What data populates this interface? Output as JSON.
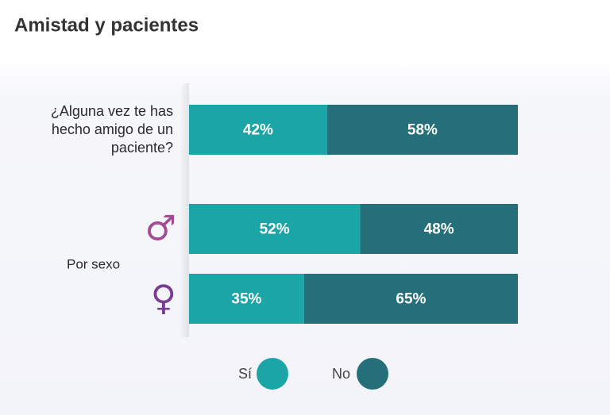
{
  "chart_data": {
    "type": "stacked-bar-horizontal",
    "title": "Amistad y pacientes",
    "categories": [
      "¿Alguna vez te has hecho amigo de un paciente?",
      "♂",
      "♀"
    ],
    "category_colors": [
      null,
      "#a24d93",
      "#7a3d92"
    ],
    "group_label": "Por sexo",
    "series": [
      {
        "name": "Sí",
        "color": "#1ba5a7",
        "values": [
          42,
          52,
          35
        ],
        "value_labels": [
          "42%",
          "52%",
          "35%"
        ]
      },
      {
        "name": "No",
        "color": "#246f79",
        "values": [
          58,
          48,
          65
        ],
        "value_labels": [
          "58%",
          "48%",
          "65%"
        ]
      }
    ]
  }
}
